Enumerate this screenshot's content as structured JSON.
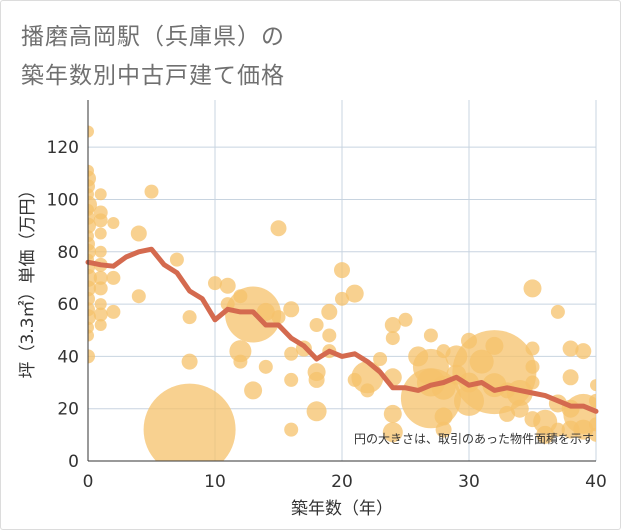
{
  "title_line1": "播磨高岡駅（兵庫県）の",
  "title_line2": "築年数別中古戸建て価格",
  "chart_data": {
    "type": "scatter",
    "xlabel": "築年数（年）",
    "ylabel": "坪（3.3㎡）単価（万円）",
    "xlim": [
      0,
      40
    ],
    "ylim": [
      0,
      130
    ],
    "xticks": [
      "0",
      "10",
      "20",
      "30",
      "40"
    ],
    "yticks": [
      "0",
      "20",
      "40",
      "60",
      "80",
      "100",
      "120"
    ],
    "grid": true,
    "annotation": "円の大きさは、取引のあった物件面積を示す",
    "colors": {
      "bubble": "#f5c26b",
      "line": "#d46a4f",
      "grid": "#c8d4e0"
    },
    "bubbles": [
      [
        0,
        126,
        6
      ],
      [
        0,
        111,
        6
      ],
      [
        0,
        108,
        8
      ],
      [
        0,
        105,
        7
      ],
      [
        0,
        102,
        6
      ],
      [
        0,
        98,
        9
      ],
      [
        0,
        96,
        6
      ],
      [
        0,
        93,
        7
      ],
      [
        0,
        90,
        8
      ],
      [
        0,
        86,
        6
      ],
      [
        0,
        83,
        7
      ],
      [
        0,
        80,
        8
      ],
      [
        0,
        77,
        6
      ],
      [
        0,
        74,
        7
      ],
      [
        0,
        70,
        9
      ],
      [
        0,
        66,
        8
      ],
      [
        0,
        62,
        7
      ],
      [
        0,
        58,
        7
      ],
      [
        0,
        55,
        8
      ],
      [
        0,
        51,
        6
      ],
      [
        0,
        48,
        6
      ],
      [
        0,
        40,
        7
      ],
      [
        1,
        102,
        6
      ],
      [
        1,
        95,
        7
      ],
      [
        1,
        92,
        7
      ],
      [
        1,
        87,
        6
      ],
      [
        1,
        80,
        6
      ],
      [
        1,
        75,
        7
      ],
      [
        1,
        70,
        7
      ],
      [
        1,
        66,
        7
      ],
      [
        1,
        60,
        6
      ],
      [
        1,
        56,
        7
      ],
      [
        1,
        52,
        6
      ],
      [
        2,
        91,
        6
      ],
      [
        2,
        70,
        7
      ],
      [
        2,
        57,
        7
      ],
      [
        4,
        87,
        8
      ],
      [
        4,
        63,
        7
      ],
      [
        5,
        103,
        7
      ],
      [
        7,
        77,
        7
      ],
      [
        8,
        55,
        7
      ],
      [
        8,
        38,
        8
      ],
      [
        8,
        12,
        46
      ],
      [
        10,
        68,
        7
      ],
      [
        11,
        67,
        8
      ],
      [
        11,
        60,
        7
      ],
      [
        12,
        63,
        7
      ],
      [
        12,
        42,
        11
      ],
      [
        12,
        38,
        7
      ],
      [
        13,
        56,
        28
      ],
      [
        13,
        27,
        9
      ],
      [
        14,
        57,
        9
      ],
      [
        14,
        36,
        7
      ],
      [
        15,
        89,
        8
      ],
      [
        15,
        55,
        7
      ],
      [
        16,
        58,
        8
      ],
      [
        16,
        41,
        7
      ],
      [
        16,
        31,
        7
      ],
      [
        16,
        12,
        7
      ],
      [
        17,
        43,
        8
      ],
      [
        18,
        52,
        7
      ],
      [
        18,
        34,
        9
      ],
      [
        18,
        31,
        8
      ],
      [
        18,
        19,
        10
      ],
      [
        19,
        57,
        8
      ],
      [
        19,
        48,
        7
      ],
      [
        19,
        42,
        7
      ],
      [
        20,
        73,
        8
      ],
      [
        20,
        62,
        7
      ],
      [
        21,
        64,
        9
      ],
      [
        21,
        31,
        7
      ],
      [
        22,
        32,
        16
      ],
      [
        22,
        27,
        7
      ],
      [
        23,
        39,
        7
      ],
      [
        24,
        52,
        8
      ],
      [
        24,
        47,
        7
      ],
      [
        24,
        32,
        9
      ],
      [
        24,
        18,
        9
      ],
      [
        24,
        11,
        10
      ],
      [
        25,
        54,
        7
      ],
      [
        26,
        40,
        10
      ],
      [
        27,
        48,
        7
      ],
      [
        27,
        36,
        18
      ],
      [
        27,
        30,
        14
      ],
      [
        27,
        24,
        30
      ],
      [
        28,
        42,
        7
      ],
      [
        28,
        28,
        12
      ],
      [
        28,
        17,
        9
      ],
      [
        28,
        12,
        8
      ],
      [
        29,
        40,
        11
      ],
      [
        29,
        33,
        10
      ],
      [
        30,
        46,
        8
      ],
      [
        30,
        30,
        10
      ],
      [
        30,
        23,
        15
      ],
      [
        31,
        38,
        12
      ],
      [
        32,
        34,
        42
      ],
      [
        32,
        44,
        9
      ],
      [
        32,
        29,
        12
      ],
      [
        33,
        27,
        8
      ],
      [
        33,
        18,
        8
      ],
      [
        34,
        26,
        13
      ],
      [
        34,
        20,
        9
      ],
      [
        35,
        66,
        9
      ],
      [
        35,
        43,
        7
      ],
      [
        35,
        36,
        7
      ],
      [
        35,
        30,
        7
      ],
      [
        35,
        16,
        8
      ],
      [
        36,
        15,
        12
      ],
      [
        36,
        10,
        9
      ],
      [
        37,
        57,
        7
      ],
      [
        37,
        22,
        9
      ],
      [
        37,
        12,
        7
      ],
      [
        38,
        43,
        8
      ],
      [
        38,
        32,
        8
      ],
      [
        38,
        20,
        9
      ],
      [
        38,
        12,
        9
      ],
      [
        39,
        42,
        8
      ],
      [
        39,
        18,
        20
      ],
      [
        39,
        12,
        10
      ],
      [
        40,
        29,
        6
      ],
      [
        40,
        23,
        7
      ],
      [
        40,
        14,
        7
      ],
      [
        40,
        10,
        7
      ]
    ],
    "line_series": {
      "x": [
        0,
        1,
        2,
        3,
        4,
        5,
        6,
        7,
        8,
        9,
        10,
        11,
        12,
        13,
        14,
        15,
        16,
        17,
        18,
        19,
        20,
        21,
        22,
        23,
        24,
        25,
        26,
        27,
        28,
        29,
        30,
        31,
        32,
        33,
        34,
        35,
        36,
        37,
        38,
        39,
        40
      ],
      "y": [
        76,
        75,
        74.5,
        78,
        80,
        81,
        75,
        72,
        65,
        62,
        54,
        58,
        57,
        57,
        52,
        52,
        47,
        44,
        39,
        42,
        40,
        41,
        38,
        34,
        28,
        28,
        27,
        29,
        30,
        32,
        29,
        30,
        27,
        28,
        27,
        26,
        25,
        23,
        21,
        21,
        19
      ]
    }
  }
}
